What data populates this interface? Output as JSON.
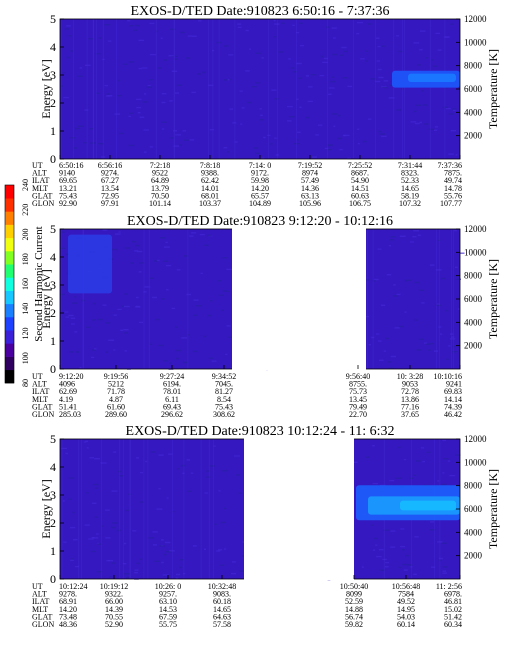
{
  "chart_data": {
    "type": "heatmap",
    "colorbar": {
      "label": "Second Harmonic Current",
      "ticks": [
        "80",
        "100",
        "120",
        "140",
        "160",
        "180",
        "200",
        "220",
        "240"
      ],
      "colors": [
        "#000000",
        "#300060",
        "#4a00a0",
        "#3a20d8",
        "#1e40ff",
        "#1a80ff",
        "#16c8ff",
        "#10ffe0",
        "#20ff70",
        "#80ff20",
        "#f0ff10",
        "#ffd000",
        "#ff8000",
        "#ff3000",
        "#ff0000"
      ]
    },
    "panels": [
      {
        "title": "EXOS-D/TED   Date:910823  6:50:16 - 7:37:36",
        "ylabel": "Energy [eV]",
        "y2label": "Temperature [K]",
        "ylim": [
          0,
          5
        ],
        "y2lim": [
          0,
          12000
        ],
        "yticks": [
          "0",
          "1",
          "2",
          "3",
          "4",
          "5"
        ],
        "y2ticks": [
          "2000",
          "4000",
          "6000",
          "8000",
          "10000",
          "12000"
        ],
        "gaps": [],
        "blobs": [
          {
            "x": [
              0.83,
              1.0
            ],
            "y": [
              2.55,
              3.15
            ],
            "color": "#1a5cff"
          },
          {
            "x": [
              0.87,
              0.99
            ],
            "y": [
              2.75,
              3.05
            ],
            "color": "#1a7cff"
          }
        ],
        "row_labels": [
          "UT",
          "ALT",
          "ILAT",
          "MLT",
          "GLAT",
          "GLON"
        ],
        "columns": [
          {
            "x": 0.0,
            "values": [
              "6:50:16",
              "9140",
              "69.65",
              "13.21",
              "75.43",
              "92.90"
            ]
          },
          {
            "x": 0.125,
            "values": [
              "6:56:16",
              "9274.",
              "67.27",
              "13.54",
              "72.95",
              "97.91"
            ]
          },
          {
            "x": 0.25,
            "values": [
              "7:2:18",
              "9522",
              "64.89",
              "13.79",
              "70.50",
              "101.14"
            ]
          },
          {
            "x": 0.375,
            "values": [
              "7:8:18",
              "9388.",
              "62.42",
              "14.01",
              "68.01",
              "103.37"
            ]
          },
          {
            "x": 0.5,
            "values": [
              "7:14: 0",
              "9172.",
              "59.98",
              "14.20",
              "65.57",
              "104.89"
            ]
          },
          {
            "x": 0.625,
            "values": [
              "7:19:52",
              "8974",
              "57.49",
              "14.36",
              "63.13",
              "105.96"
            ]
          },
          {
            "x": 0.75,
            "values": [
              "7:25:52",
              "8687.",
              "54.90",
              "14.51",
              "60.63",
              "106.75"
            ]
          },
          {
            "x": 0.875,
            "values": [
              "7:31:44",
              "8323.",
              "52.33",
              "14.65",
              "58.19",
              "107.32"
            ]
          },
          {
            "x": 1.0,
            "values": [
              "7:37:36",
              "7875.",
              "49.74",
              "14.78",
              "55.76",
              "107.77"
            ]
          }
        ]
      },
      {
        "title": "EXOS-D/TED   Date:910823  9:12:20 - 10:12:16",
        "ylabel": "Energy [eV]",
        "y2label": "Temperature [K]",
        "ylim": [
          0,
          5
        ],
        "y2lim": [
          0,
          12000
        ],
        "yticks": [
          "0",
          "1",
          "2",
          "3",
          "4",
          "5"
        ],
        "y2ticks": [
          "2000",
          "4000",
          "6000",
          "8000",
          "10000",
          "12000"
        ],
        "gaps": [
          [
            0.43,
            0.765
          ]
        ],
        "blobs": [
          {
            "x": [
              0.02,
              0.13
            ],
            "y": [
              2.7,
              4.8
            ],
            "color": "#2a3ce6"
          }
        ],
        "row_labels": [
          "UT",
          "ALT",
          "ILAT",
          "MLT",
          "GLAT",
          "GLON"
        ],
        "columns": [
          {
            "x": 0.0,
            "values": [
              "9:12:20",
              "4096",
              "62.69",
              "4.19",
              "51.41",
              "285.03"
            ]
          },
          {
            "x": 0.14,
            "values": [
              "9:19:56",
              "5212",
              "71.78",
              "4.87",
              "61.60",
              "289.60"
            ]
          },
          {
            "x": 0.28,
            "values": [
              "9:27:24",
              "6194.",
              "78.01",
              "6.11",
              "69.43",
              "296.62"
            ]
          },
          {
            "x": 0.41,
            "values": [
              "9:34:52",
              "7045.",
              "81.27",
              "8.54",
              "75.43",
              "308.62"
            ]
          },
          {
            "x": 0.745,
            "values": [
              "9:56:40",
              "8755.",
              "75.73",
              "13.45",
              "79.49",
              "22.70"
            ]
          },
          {
            "x": 0.875,
            "values": [
              "10: 3:28",
              "9053",
              "72.78",
              "13.86",
              "77.16",
              "37.65"
            ]
          },
          {
            "x": 1.0,
            "values": [
              "10:10:16",
              "9241",
              "69.83",
              "14.14",
              "74.39",
              "46.42"
            ]
          }
        ]
      },
      {
        "title": "EXOS-D/TED   Date:910823  10:12:24 - 11: 6:32",
        "ylabel": "Energy [eV]",
        "y2label": "Temperature [K]",
        "ylim": [
          0,
          5
        ],
        "y2lim": [
          0,
          12000
        ],
        "yticks": [
          "0",
          "1",
          "2",
          "3",
          "4",
          "5"
        ],
        "y2ticks": [
          "2000",
          "4000",
          "6000",
          "8000",
          "10000",
          "12000"
        ],
        "gaps": [
          [
            0.46,
            0.735
          ]
        ],
        "blobs": [
          {
            "x": [
              0.74,
              1.0
            ],
            "y": [
              2.1,
              3.35
            ],
            "color": "#1a64ff"
          },
          {
            "x": [
              0.77,
              1.0
            ],
            "y": [
              2.3,
              2.95
            ],
            "color": "#1aa0ff"
          },
          {
            "x": [
              0.85,
              0.99
            ],
            "y": [
              2.45,
              2.8
            ],
            "color": "#16c0ff"
          }
        ],
        "row_labels": [
          "UT",
          "ALT",
          "ILAT",
          "MLT",
          "GLAT",
          "GLON"
        ],
        "columns": [
          {
            "x": 0.0,
            "values": [
              "10:12:24",
              "9278.",
              "68.91",
              "14.20",
              "73.48",
              "48.36"
            ]
          },
          {
            "x": 0.135,
            "values": [
              "10:19:12",
              "9322.",
              "66.00",
              "14.39",
              "70.55",
              "52.90"
            ]
          },
          {
            "x": 0.27,
            "values": [
              "10:26: 0",
              "9257.",
              "63.10",
              "14.53",
              "67.59",
              "55.75"
            ]
          },
          {
            "x": 0.405,
            "values": [
              "10:32:48",
              "9083.",
              "60.18",
              "14.65",
              "64.63",
              "57.58"
            ]
          },
          {
            "x": 0.735,
            "values": [
              "10:50:40",
              "8099",
              "52.59",
              "14.88",
              "56.74",
              "59.82"
            ]
          },
          {
            "x": 0.865,
            "values": [
              "10:56:48",
              "7584",
              "49.52",
              "14.95",
              "54.03",
              "60.14"
            ]
          },
          {
            "x": 1.0,
            "values": [
              "11: 2:56",
              "6978.",
              "46.81",
              "15.02",
              "51.42",
              "60.34"
            ]
          }
        ]
      }
    ]
  }
}
